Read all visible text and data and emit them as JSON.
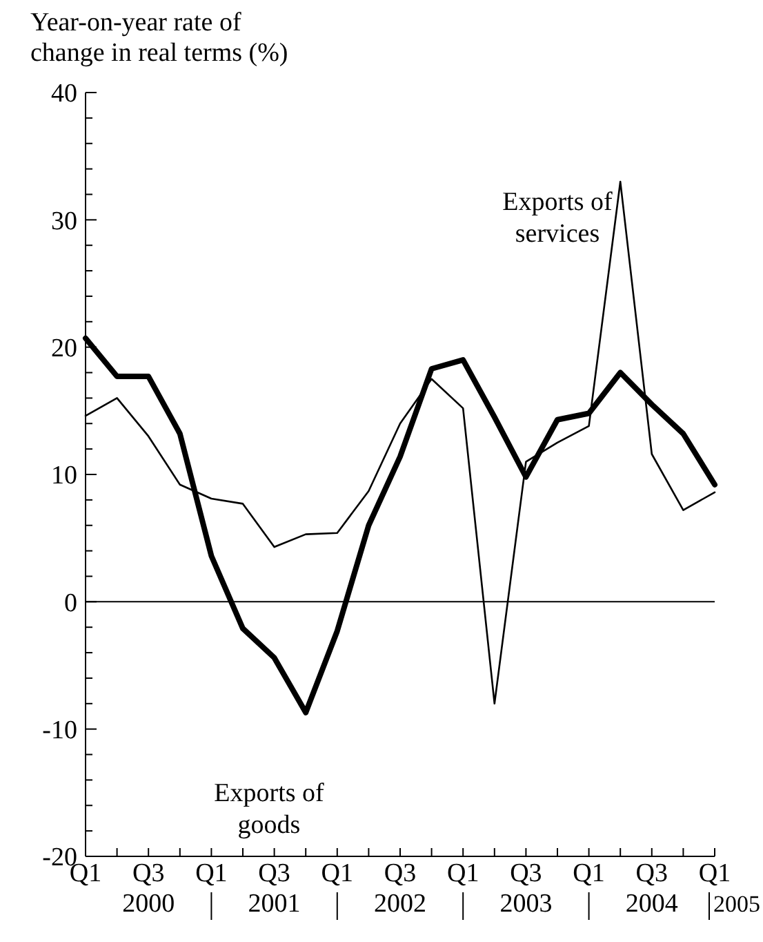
{
  "chart_data": {
    "type": "line",
    "ylabel": "Year-on-year rate of\nchange in real terms (%)",
    "categories": [
      "Q1",
      null,
      "Q3",
      null,
      "Q1",
      null,
      "Q3",
      null,
      "Q1",
      null,
      "Q3",
      null,
      "Q1",
      null,
      "Q3",
      null,
      "Q1",
      null,
      "Q3",
      null,
      "Q1"
    ],
    "series": [
      {
        "name": "Exports of goods",
        "color": "#000000",
        "values": [
          20.7,
          17.7,
          17.7,
          13.2,
          3.6,
          -2.1,
          -4.4,
          -8.7,
          -2.3,
          6,
          11.4,
          18.3,
          19,
          14.5,
          9.8,
          14.3,
          14.8,
          18,
          15.5,
          13.2,
          9.2
        ]
      },
      {
        "name": "Exports of services",
        "color": "#000000",
        "values": [
          14.6,
          16,
          13,
          9.2,
          8.1,
          7.7,
          4.3,
          5.3,
          5.4,
          8.7,
          14,
          17.5,
          15.2,
          -8,
          11,
          12.5,
          13.8,
          33,
          11.6,
          7.2,
          8.6
        ]
      }
    ],
    "ylim": [
      -20,
      40
    ],
    "yticks": [
      -20,
      {
        "value": -18,
        "label": null
      },
      {
        "value": -16,
        "label": null
      },
      {
        "value": -14,
        "label": null
      },
      {
        "value": -12,
        "label": null
      },
      -10,
      {
        "value": -8,
        "label": null
      },
      {
        "value": -6,
        "label": null
      },
      {
        "value": -4,
        "label": null
      },
      {
        "value": -2,
        "label": null
      },
      0,
      {
        "value": 2,
        "label": null
      },
      {
        "value": 4,
        "label": null
      },
      {
        "value": 6,
        "label": null
      },
      {
        "value": 8,
        "label": null
      },
      10,
      {
        "value": 12,
        "label": null
      },
      {
        "value": 14,
        "label": null
      },
      {
        "value": 16,
        "label": null
      },
      {
        "value": 18,
        "label": null
      },
      20,
      {
        "value": 22,
        "label": null
      },
      {
        "value": 24,
        "label": null
      },
      {
        "value": 26,
        "label": null
      },
      {
        "value": 28,
        "label": null
      },
      30,
      {
        "value": 32,
        "label": null
      },
      {
        "value": 34,
        "label": null
      },
      {
        "value": 36,
        "label": null
      },
      {
        "value": 38,
        "label": null
      },
      40
    ],
    "ref_lines": [
      {
        "axis": "y",
        "value": 0
      }
    ],
    "annotations": [
      "2000",
      "2001",
      "2002",
      "2003",
      "2004",
      "2005"
    ],
    "grid": false,
    "marker": "none",
    "line_style": "solid"
  }
}
